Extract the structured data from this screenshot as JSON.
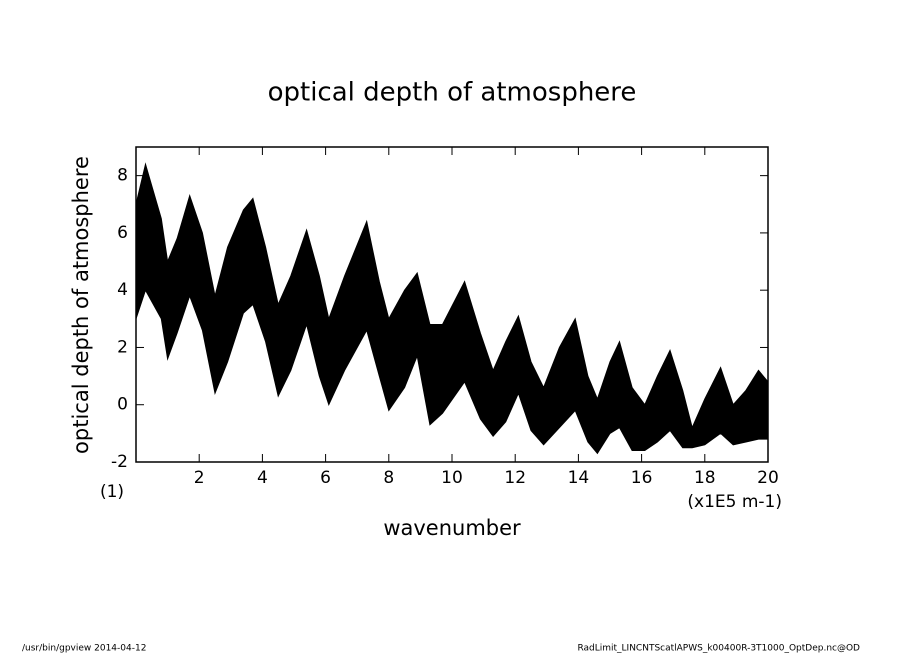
{
  "chart_data": {
    "type": "band",
    "title": "optical depth of atmosphere",
    "ylabel": "optical depth of atmosphere",
    "xlabel": "wavenumber",
    "yunit": "(1)",
    "xunit": "(x1E5 m-1)",
    "footer_left": "/usr/bin/gpview  2014-04-12",
    "footer_right": "RadLimit_LINCNTScatlAPWS_k00400R-3T1000_OptDep.nc@OD",
    "color": "#000000",
    "x": [
      0.0,
      0.3,
      0.8,
      1.0,
      1.3,
      1.7,
      2.1,
      2.5,
      2.9,
      3.4,
      3.7,
      4.1,
      4.5,
      4.9,
      5.4,
      5.8,
      6.1,
      6.6,
      7.3,
      7.7,
      8.0,
      8.5,
      8.9,
      9.3,
      9.7,
      10.4,
      10.9,
      11.3,
      11.7,
      12.1,
      12.5,
      12.9,
      13.4,
      13.9,
      14.3,
      14.6,
      15.0,
      15.3,
      15.7,
      16.1,
      16.5,
      16.9,
      17.3,
      17.6,
      18.0,
      18.5,
      18.9,
      19.3,
      19.7,
      20.0
    ],
    "upper": [
      7.0,
      8.4,
      6.5,
      5.0,
      5.8,
      7.3,
      6.0,
      3.8,
      5.5,
      6.8,
      7.2,
      5.5,
      3.5,
      4.5,
      6.1,
      4.5,
      3.0,
      4.5,
      6.4,
      4.3,
      3.0,
      4.0,
      4.6,
      2.8,
      2.8,
      4.3,
      2.5,
      1.2,
      2.2,
      3.1,
      1.5,
      0.6,
      2.0,
      3.0,
      1.0,
      0.2,
      1.5,
      2.2,
      0.6,
      0.0,
      1.0,
      1.9,
      0.5,
      -0.8,
      0.2,
      1.3,
      0.0,
      0.5,
      1.2,
      0.8
    ],
    "lower": [
      3.0,
      4.0,
      3.0,
      1.6,
      2.5,
      3.8,
      2.6,
      0.4,
      1.5,
      3.2,
      3.5,
      2.2,
      0.3,
      1.2,
      2.8,
      1.0,
      0.0,
      1.2,
      2.6,
      1.0,
      -0.2,
      0.6,
      1.7,
      -0.7,
      -0.3,
      0.8,
      -0.5,
      -1.1,
      -0.6,
      0.4,
      -0.9,
      -1.4,
      -0.8,
      -0.2,
      -1.3,
      -1.7,
      -1.0,
      -0.8,
      -1.6,
      -1.6,
      -1.3,
      -0.9,
      -1.5,
      -1.5,
      -1.4,
      -1.0,
      -1.4,
      -1.3,
      -1.2,
      -1.2
    ],
    "xlim": [
      0,
      20
    ],
    "xticks": [
      2,
      4,
      6,
      8,
      10,
      12,
      14,
      16,
      18,
      20
    ],
    "ylim": [
      -2,
      9
    ],
    "yticks": [
      -2,
      0,
      2,
      4,
      6,
      8
    ]
  }
}
